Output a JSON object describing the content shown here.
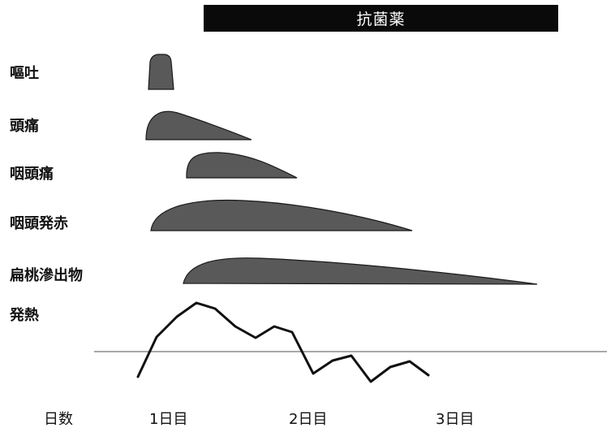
{
  "antibiotic": {
    "label": "抗菌薬"
  },
  "symptoms": [
    {
      "key": "vomiting",
      "label": "嘔吐"
    },
    {
      "key": "headache",
      "label": "頭痛"
    },
    {
      "key": "sore_throat",
      "label": "咽頭痛"
    },
    {
      "key": "pharyngeal_redness",
      "label": "咽頭発赤"
    },
    {
      "key": "tonsillar_exudate",
      "label": "扁桃滲出物"
    },
    {
      "key": "fever",
      "label": "発熱"
    }
  ],
  "timeline": {
    "axis_label": "日数",
    "days": [
      "1日目",
      "2日目",
      "3日目"
    ]
  },
  "colors": {
    "bar": "#0a0a0a",
    "shape_fill": "#595959",
    "shape_stroke": "#1a1a1a",
    "fever_line": "#111111",
    "baseline": "#8c8c8c"
  }
}
